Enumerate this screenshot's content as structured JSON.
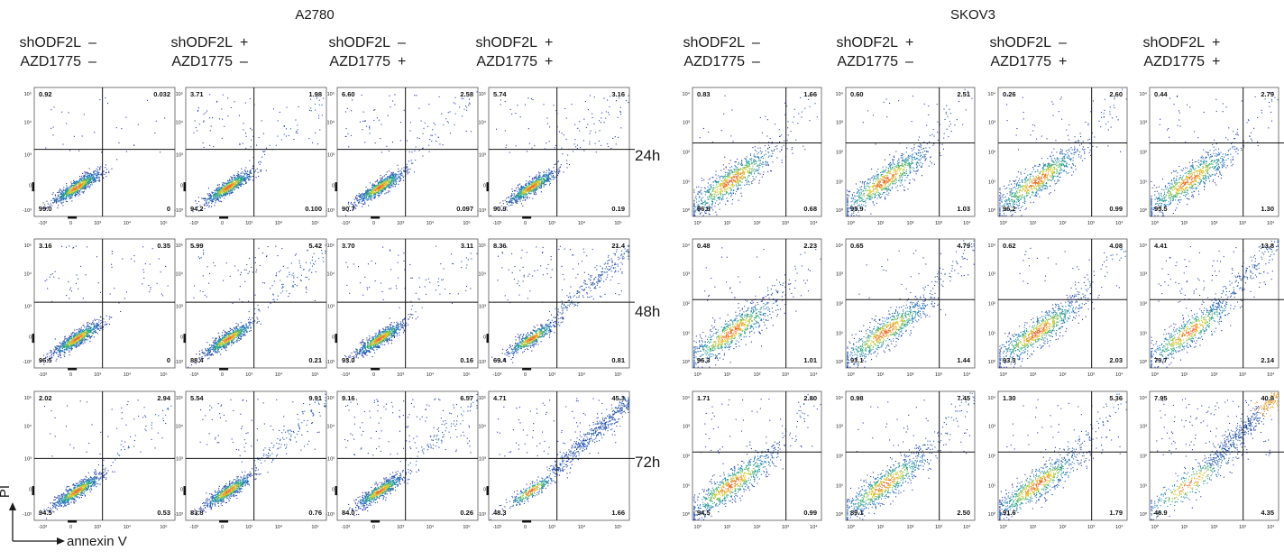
{
  "groups": [
    {
      "title": "A2780",
      "axis_type": "biexponential",
      "x_ticks": [
        "-10³",
        "0",
        "10³",
        "10⁴",
        "10⁵"
      ],
      "y_ticks": [
        "10⁵",
        "10⁴",
        "10³",
        "0",
        "-10³"
      ]
    },
    {
      "title": "SKOV3",
      "axis_type": "log",
      "x_ticks": [
        "10⁰",
        "10¹",
        "10²",
        "10³",
        "10⁴"
      ],
      "y_ticks": [
        "10⁴",
        "10³",
        "10²",
        "10¹",
        "10⁰"
      ]
    }
  ],
  "conditions": [
    {
      "label1": "shODF2L",
      "sign1": "–",
      "label2": "AZD1775",
      "sign2": "–"
    },
    {
      "label1": "shODF2L",
      "sign1": "+",
      "label2": "AZD1775",
      "sign2": "–"
    },
    {
      "label1": "shODF2L",
      "sign1": "–",
      "label2": "AZD1775",
      "sign2": "+"
    },
    {
      "label1": "shODF2L",
      "sign1": "+",
      "label2": "AZD1775",
      "sign2": "+"
    }
  ],
  "timepoints": [
    "24h",
    "48h",
    "72h"
  ],
  "axis_labels": {
    "y": "PI",
    "x": "annexin V"
  },
  "chart_data": {
    "type": "scatter",
    "description_units": "quadrant percentages [upper-left, upper-right, lower-left, lower-right]",
    "panels": {
      "A2780": [
        [
          [
            0.92,
            "0.032",
            "99.0",
            "0"
          ],
          [
            "3.71",
            "1.98",
            "94.2",
            "0.100"
          ],
          [
            "6.60",
            "2.58",
            "90.7",
            "0.097"
          ],
          [
            "5.74",
            "3.16",
            "90.9",
            "0.19"
          ]
        ],
        [
          [
            "3.16",
            "0.35",
            "96.5",
            "0"
          ],
          [
            "5.99",
            "5.42",
            "88.4",
            "0.21"
          ],
          [
            "3.70",
            "3.11",
            "93.0",
            "0.16"
          ],
          [
            "8.36",
            "21.4",
            "69.4",
            "0.81"
          ]
        ],
        [
          [
            "2.02",
            "2.94",
            "94.5",
            "0.53"
          ],
          [
            "5.54",
            "9.91",
            "83.8",
            "0.76"
          ],
          [
            "9.16",
            "6.57",
            "84.0",
            "0.26"
          ],
          [
            "4.71",
            "45.3",
            "48.3",
            "1.66"
          ]
        ]
      ],
      "SKOV3": [
        [
          [
            "0.83",
            "1.66",
            "96.8",
            "0.68"
          ],
          [
            "0.60",
            "2.51",
            "95.9",
            "1.03"
          ],
          [
            "0.26",
            "2.60",
            "96.2",
            "0.99"
          ],
          [
            "0.44",
            "2.79",
            "95.5",
            "1.30"
          ]
        ],
        [
          [
            "0.48",
            "2.23",
            "96.3",
            "1.01"
          ],
          [
            "0.65",
            "4.79",
            "93.1",
            "1.44"
          ],
          [
            "0.62",
            "4.08",
            "93.3",
            "2.03"
          ],
          [
            "4.41",
            "13.8",
            "79.7",
            "2.14"
          ]
        ],
        [
          [
            "1.71",
            "2.80",
            "94.5",
            "0.99"
          ],
          [
            "0.98",
            "7.45",
            "89.1",
            "2.50"
          ],
          [
            "1.30",
            "5.36",
            "91.6",
            "1.79"
          ],
          [
            "7.95",
            "40.8",
            "46.9",
            "4.35"
          ]
        ]
      ]
    }
  },
  "colors": {
    "density_low": "#2b3a9e",
    "density_mid": "#1fa37a",
    "density_high": "#f5d316",
    "peak": "#e8582a",
    "gate": "#111111"
  }
}
